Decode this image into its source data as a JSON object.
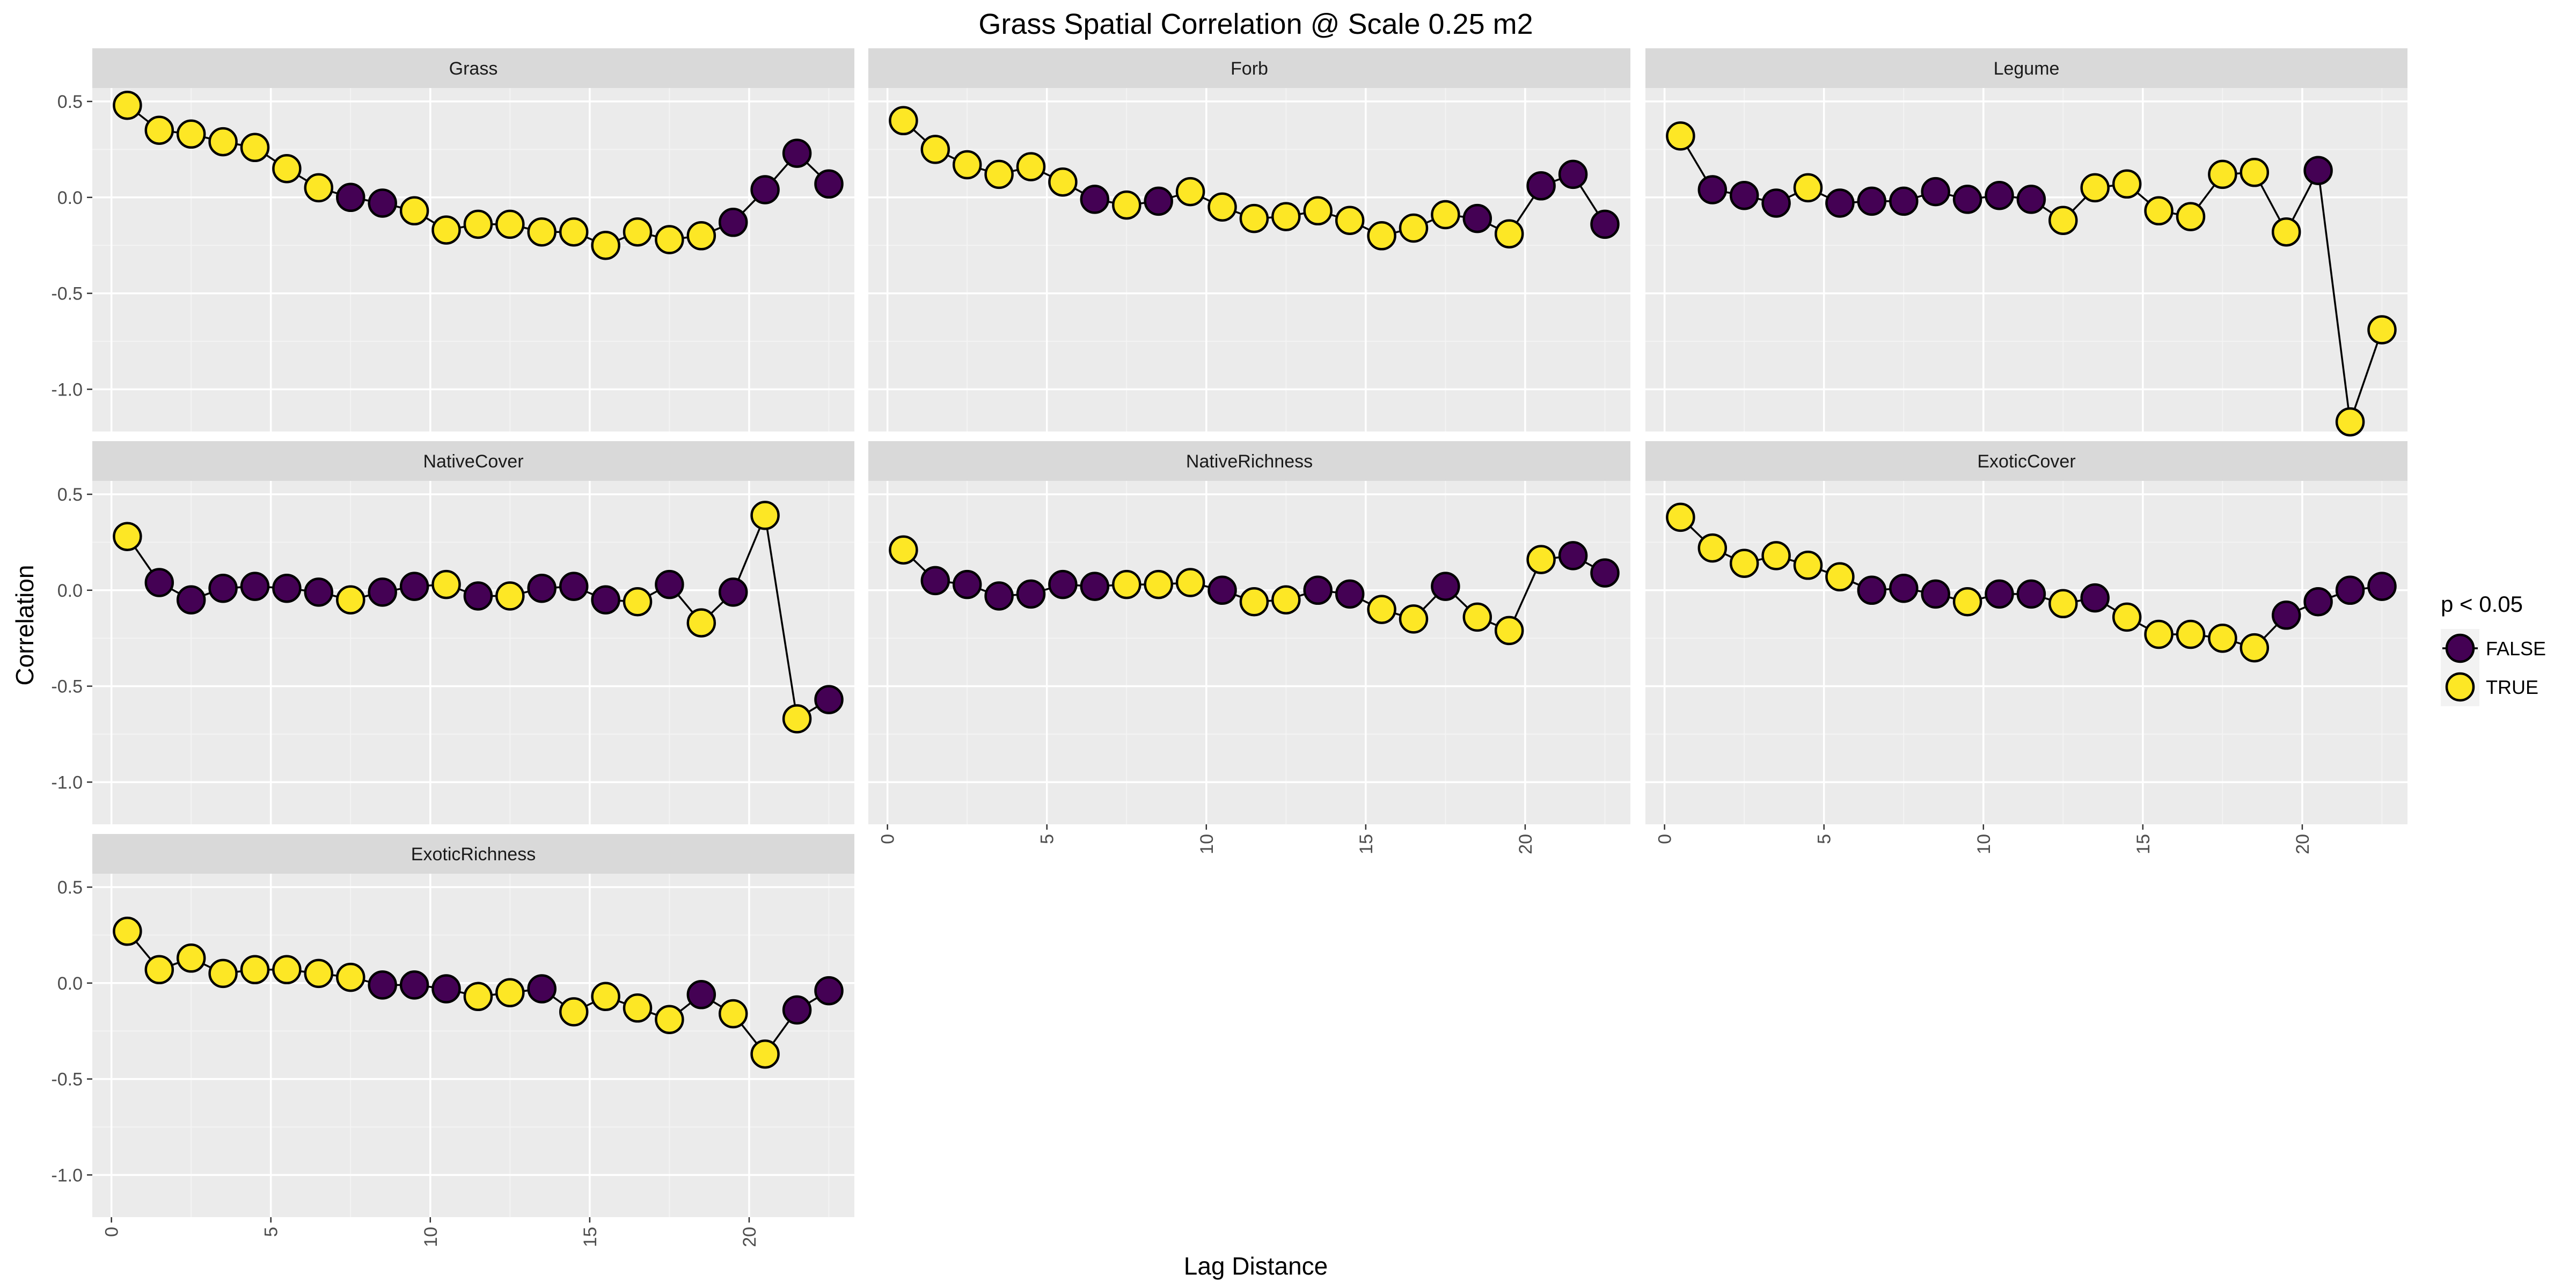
{
  "chart_data": {
    "type": "scatter",
    "title": "Grass Spatial Correlation @ Scale 0.25 m2",
    "xlabel": "Lag Distance",
    "ylabel": "Correlation",
    "xlim": [
      -0.6,
      23.3
    ],
    "ylim": [
      -1.22,
      0.57
    ],
    "x_ticks": [
      0,
      5,
      10,
      15,
      20
    ],
    "y_ticks": [
      0.5,
      0.0,
      -0.5,
      -1.0
    ],
    "x_tick_labels": [
      "0",
      "5",
      "10",
      "15",
      "20"
    ],
    "y_tick_labels": [
      "0.5",
      "0.0",
      "-0.5",
      "-1.0"
    ],
    "grid": true,
    "legend": {
      "title": "p < 0.05",
      "position": "right",
      "entries": [
        {
          "label": "FALSE",
          "color": "#440154"
        },
        {
          "label": "TRUE",
          "color": "#fde725"
        }
      ]
    },
    "colors": {
      "FALSE": "#440154",
      "TRUE": "#fde725"
    },
    "x": [
      0.5,
      1.5,
      2.5,
      3.5,
      4.5,
      5.5,
      6.5,
      7.5,
      8.5,
      9.5,
      10.5,
      11.5,
      12.5,
      13.5,
      14.5,
      15.5,
      16.5,
      17.5,
      18.5,
      19.5,
      20.5,
      21.5,
      22.5
    ],
    "panels": [
      {
        "name": "Grass",
        "values": [
          0.48,
          0.35,
          0.33,
          0.29,
          0.26,
          0.15,
          0.05,
          0.0,
          -0.03,
          -0.07,
          -0.17,
          -0.14,
          -0.14,
          -0.18,
          -0.18,
          -0.25,
          -0.18,
          -0.22,
          -0.2,
          -0.13,
          0.04,
          0.23,
          0.07
        ],
        "significant": [
          true,
          true,
          true,
          true,
          true,
          true,
          true,
          false,
          false,
          true,
          true,
          true,
          true,
          true,
          true,
          true,
          true,
          true,
          true,
          false,
          false,
          false,
          false
        ]
      },
      {
        "name": "Forb",
        "values": [
          0.4,
          0.25,
          0.17,
          0.12,
          0.16,
          0.08,
          -0.01,
          -0.04,
          -0.02,
          0.03,
          -0.05,
          -0.11,
          -0.1,
          -0.07,
          -0.12,
          -0.2,
          -0.16,
          -0.09,
          -0.11,
          -0.19,
          0.06,
          0.12,
          -0.14
        ],
        "significant": [
          true,
          true,
          true,
          true,
          true,
          true,
          false,
          true,
          false,
          true,
          true,
          true,
          true,
          true,
          true,
          true,
          true,
          true,
          false,
          true,
          false,
          false,
          false
        ]
      },
      {
        "name": "Legume",
        "values": [
          0.32,
          0.04,
          0.01,
          -0.03,
          0.05,
          -0.03,
          -0.02,
          -0.02,
          0.03,
          -0.01,
          0.01,
          -0.01,
          -0.12,
          0.05,
          0.07,
          -0.07,
          -0.1,
          0.12,
          0.13,
          -0.18,
          0.14,
          -1.17,
          -0.69
        ],
        "significant": [
          true,
          false,
          false,
          false,
          true,
          false,
          false,
          false,
          false,
          false,
          false,
          false,
          true,
          true,
          true,
          true,
          true,
          true,
          true,
          true,
          false,
          true,
          true
        ]
      },
      {
        "name": "NativeCover",
        "values": [
          0.28,
          0.04,
          -0.05,
          0.01,
          0.02,
          0.01,
          -0.01,
          -0.05,
          -0.01,
          0.02,
          0.03,
          -0.03,
          -0.03,
          0.01,
          0.02,
          -0.05,
          -0.06,
          0.03,
          -0.17,
          -0.01,
          0.39,
          -0.67,
          -0.57
        ],
        "significant": [
          true,
          false,
          false,
          false,
          false,
          false,
          false,
          true,
          false,
          false,
          true,
          false,
          true,
          false,
          false,
          false,
          true,
          false,
          true,
          false,
          true,
          true,
          false
        ]
      },
      {
        "name": "NativeRichness",
        "values": [
          0.21,
          0.05,
          0.03,
          -0.03,
          -0.02,
          0.03,
          0.02,
          0.03,
          0.03,
          0.04,
          0.0,
          -0.06,
          -0.05,
          0.0,
          -0.02,
          -0.1,
          -0.15,
          0.02,
          -0.14,
          -0.21,
          0.16,
          0.18,
          0.09
        ],
        "significant": [
          true,
          false,
          false,
          false,
          false,
          false,
          false,
          true,
          true,
          true,
          false,
          true,
          true,
          false,
          false,
          true,
          true,
          false,
          true,
          true,
          true,
          false,
          false
        ]
      },
      {
        "name": "ExoticCover",
        "values": [
          0.38,
          0.22,
          0.14,
          0.18,
          0.13,
          0.07,
          0.0,
          0.01,
          -0.02,
          -0.06,
          -0.02,
          -0.02,
          -0.07,
          -0.04,
          -0.14,
          -0.23,
          -0.23,
          -0.25,
          -0.3,
          -0.13,
          -0.06,
          0.0,
          0.02
        ],
        "significant": [
          true,
          true,
          true,
          true,
          true,
          true,
          false,
          false,
          false,
          true,
          false,
          false,
          true,
          false,
          true,
          true,
          true,
          true,
          true,
          false,
          false,
          false,
          false
        ]
      },
      {
        "name": "ExoticRichness",
        "values": [
          0.27,
          0.07,
          0.13,
          0.05,
          0.07,
          0.07,
          0.05,
          0.03,
          -0.01,
          -0.01,
          -0.03,
          -0.07,
          -0.05,
          -0.03,
          -0.15,
          -0.07,
          -0.13,
          -0.19,
          -0.06,
          -0.16,
          -0.37,
          -0.14,
          -0.04
        ],
        "significant": [
          true,
          true,
          true,
          true,
          true,
          true,
          true,
          true,
          false,
          false,
          false,
          true,
          true,
          false,
          true,
          true,
          true,
          true,
          false,
          true,
          true,
          false,
          false
        ]
      }
    ]
  }
}
